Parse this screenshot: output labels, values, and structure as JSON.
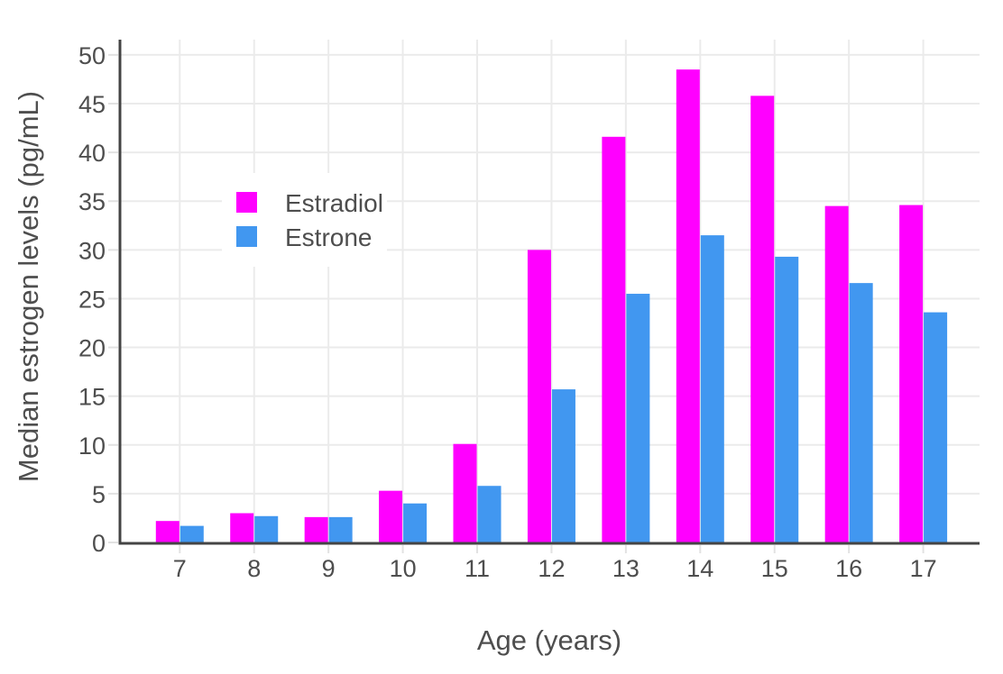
{
  "figure": {
    "background": "#ffffff"
  },
  "chart_data": {
    "type": "bar",
    "title": "",
    "categories": [
      7,
      8,
      9,
      10,
      11,
      12,
      13,
      14,
      15,
      16,
      17
    ],
    "series": [
      {
        "name": "Estradiol",
        "color": "#ff00ff",
        "values": [
          2.2,
          3.0,
          2.6,
          5.3,
          10.1,
          30.0,
          41.6,
          48.5,
          45.8,
          34.5,
          34.6
        ]
      },
      {
        "name": "Estrone",
        "color": "#4197f0",
        "values": [
          1.7,
          2.7,
          2.6,
          4.0,
          5.8,
          15.7,
          25.5,
          31.5,
          29.3,
          26.6,
          23.6
        ]
      }
    ],
    "xlabel": "Age (years)",
    "ylabel": "Median estrogen levels (pg/mL)",
    "ylim": [
      0,
      51.5
    ],
    "yticks": [
      0,
      5,
      10,
      15,
      20,
      25,
      30,
      35,
      40,
      45,
      50
    ],
    "grid": true,
    "legend": {
      "position": "inside-top-left",
      "entries": [
        "Estradiol",
        "Estrone"
      ]
    },
    "colors": {
      "estradiol": "#ff00ff",
      "estrone": "#4197f0",
      "gridline": "#ebebeb",
      "axis_line": "#444444",
      "tick_mark": "#e2e2e2",
      "text": "#4e4e4e",
      "legend_background": "#ffffff"
    }
  }
}
